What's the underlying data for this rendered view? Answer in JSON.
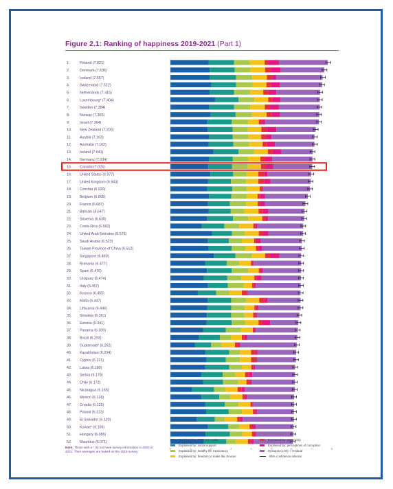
{
  "title": "Figure 2.1: Ranking of happiness 2019-2021",
  "title_part": "(Part 1)",
  "note_label": "Note:",
  "note_text": "Those with a * do not have survey information in 2020 or 2021. Their averages are based on the 2019 survey.",
  "highlight_country": "Canada",
  "colors": {
    "gdp": "#1a5ea6",
    "social": "#1b9a8c",
    "health": "#a7c84a",
    "freedom": "#f4c21a",
    "generosity": "#e03237",
    "corruption": "#e0187f",
    "dystopia": "#9966bb",
    "ci": "#222222",
    "highlight": "#e8231c",
    "title": "#8a2c8e",
    "frame": "#1f5aa8"
  },
  "chart_data": {
    "type": "bar",
    "stacked": true,
    "orientation": "horizontal",
    "xlim": [
      0,
      8
    ],
    "x_ticks": [
      "0",
      "1",
      "2",
      "3",
      "4",
      "5",
      "6",
      "7",
      "8"
    ],
    "categories": [
      "1. Finland (7.821)",
      "2. Denmark (7.636)",
      "3. Iceland (7.557)",
      "4. Switzerland (7.512)",
      "5. Netherlands (7.415)",
      "6. Luxembourg* (7.404)",
      "7. Sweden (7.384)",
      "8. Norway (7.365)",
      "9. Israel (7.364)",
      "10. New Zealand (7.200)",
      "11. Austria (7.163)",
      "12. Australia (7.162)",
      "13. Ireland (7.041)",
      "14. Germany (7.034)",
      "15. Canada (7.025)",
      "16. United States (6.977)",
      "17. United Kingdom (6.943)",
      "18. Czechia (6.920)",
      "19. Belgium (6.805)",
      "20. France (6.687)",
      "21. Bahrain (6.647)",
      "22. Slovenia (6.630)",
      "23. Costa Rica (6.582)",
      "24. United Arab Emirates (6.576)",
      "25. Saudi Arabia (6.523)",
      "26. Taiwan Province of China (6.512)",
      "27. Singapore (6.480)",
      "28. Romania (6.477)",
      "29. Spain (6.476)",
      "30. Uruguay (6.474)",
      "31. Italy (6.467)",
      "32. Kosovo (6.455)",
      "33. Malta (6.447)",
      "34. Lithuania (6.446)",
      "35. Slovakia (6.391)",
      "36. Estonia (6.341)",
      "37. Panama (6.309)",
      "38. Brazil (6.293)",
      "39. Guatemala* (6.262)",
      "40. Kazakhstan (6.234)",
      "41. Cyprus (6.221)",
      "42. Latvia (6.180)",
      "43. Serbia (6.178)",
      "44. Chile (6.172)",
      "45. Nicaragua (6.165)",
      "46. Mexico (6.128)",
      "47. Croatia (6.125)",
      "48. Poland (6.123)",
      "49. El Salvador (6.120)",
      "50. Kuwait* (6.106)",
      "51. Hungary (6.086)",
      "52. Mauritius (6.071)"
    ],
    "scores": [
      7.821,
      7.636,
      7.557,
      7.512,
      7.415,
      7.404,
      7.384,
      7.365,
      7.364,
      7.2,
      7.163,
      7.162,
      7.041,
      7.034,
      7.025,
      6.977,
      6.943,
      6.92,
      6.805,
      6.687,
      6.647,
      6.63,
      6.582,
      6.576,
      6.523,
      6.512,
      6.48,
      6.477,
      6.476,
      6.474,
      6.467,
      6.455,
      6.447,
      6.446,
      6.391,
      6.341,
      6.309,
      6.293,
      6.262,
      6.234,
      6.221,
      6.18,
      6.178,
      6.172,
      6.165,
      6.128,
      6.125,
      6.123,
      6.12,
      6.106,
      6.086,
      6.071
    ],
    "series": [
      {
        "name": "Explained by: GDP per capita",
        "key": "gdp",
        "values": [
          1.89,
          1.95,
          1.94,
          2.03,
          1.95,
          2.21,
          1.92,
          2.0,
          1.83,
          1.85,
          1.93,
          1.9,
          2.13,
          1.92,
          1.88,
          1.98,
          1.87,
          1.82,
          1.91,
          1.86,
          1.89,
          1.83,
          1.56,
          2.06,
          1.86,
          1.9,
          2.15,
          1.72,
          1.81,
          1.65,
          1.86,
          1.36,
          1.84,
          1.82,
          1.81,
          1.8,
          1.63,
          1.42,
          1.21,
          1.74,
          1.79,
          1.73,
          1.53,
          1.63,
          1.07,
          1.53,
          1.72,
          1.77,
          1.32,
          1.86,
          1.74,
          1.65
        ]
      },
      {
        "name": "Explained by: social support",
        "key": "social",
        "values": [
          1.26,
          1.24,
          1.32,
          1.23,
          1.21,
          1.17,
          1.24,
          1.23,
          1.21,
          1.23,
          1.16,
          1.22,
          1.24,
          1.17,
          1.18,
          1.13,
          1.13,
          1.25,
          1.11,
          1.09,
          1.1,
          1.27,
          1.11,
          0.99,
          1.04,
          1.14,
          1.07,
          1.07,
          1.23,
          1.17,
          0.99,
          0.91,
          1.17,
          1.2,
          1.2,
          1.23,
          1.12,
          1.03,
          0.81,
          1.17,
          0.96,
          1.18,
          1.06,
          0.98,
          1.1,
          0.89,
          0.98,
          1.12,
          0.88,
          1.01,
          1.21,
          1.12
        ]
      },
      {
        "name": "Explained by: healthy life expectancy",
        "key": "health",
        "values": [
          0.78,
          0.78,
          0.8,
          0.82,
          0.79,
          0.78,
          0.8,
          0.8,
          0.82,
          0.76,
          0.78,
          0.79,
          0.78,
          0.76,
          0.78,
          0.68,
          0.75,
          0.71,
          0.76,
          0.8,
          0.68,
          0.76,
          0.74,
          0.64,
          0.64,
          0.68,
          0.82,
          0.62,
          0.82,
          0.69,
          0.8,
          0.64,
          0.76,
          0.66,
          0.66,
          0.69,
          0.74,
          0.56,
          0.52,
          0.53,
          0.7,
          0.63,
          0.64,
          0.75,
          0.55,
          0.55,
          0.68,
          0.66,
          0.5,
          0.55,
          0.62,
          0.49
        ]
      },
      {
        "name": "Explained by: freedom to make life choices",
        "key": "freedom",
        "values": [
          0.74,
          0.72,
          0.72,
          0.68,
          0.65,
          0.69,
          0.72,
          0.74,
          0.52,
          0.67,
          0.63,
          0.66,
          0.68,
          0.61,
          0.65,
          0.57,
          0.61,
          0.65,
          0.54,
          0.58,
          0.7,
          0.69,
          0.7,
          0.69,
          0.61,
          0.52,
          0.66,
          0.58,
          0.52,
          0.65,
          0.4,
          0.63,
          0.63,
          0.48,
          0.43,
          0.65,
          0.59,
          0.53,
          0.66,
          0.56,
          0.55,
          0.47,
          0.47,
          0.41,
          0.61,
          0.6,
          0.59,
          0.54,
          0.61,
          0.5,
          0.47,
          0.58
        ]
      },
      {
        "name": "Explained by: generosity",
        "key": "generosity",
        "values": [
          0.18,
          0.25,
          0.27,
          0.22,
          0.24,
          0.22,
          0.24,
          0.24,
          0.16,
          0.26,
          0.23,
          0.22,
          0.24,
          0.22,
          0.24,
          0.28,
          0.28,
          0.11,
          0.13,
          0.1,
          0.22,
          0.15,
          0.1,
          0.2,
          0.1,
          0.12,
          0.24,
          0.11,
          0.08,
          0.1,
          0.08,
          0.26,
          0.27,
          0.09,
          0.14,
          0.19,
          0.09,
          0.13,
          0.17,
          0.2,
          0.24,
          0.1,
          0.19,
          0.16,
          0.2,
          0.13,
          0.11,
          0.12,
          0.16,
          0.13,
          0.13,
          0.17
        ]
      },
      {
        "name": "Explained by: perceptions of corruption",
        "key": "corruption",
        "values": [
          0.53,
          0.53,
          0.19,
          0.46,
          0.41,
          0.39,
          0.47,
          0.43,
          0.14,
          0.48,
          0.28,
          0.39,
          0.41,
          0.36,
          0.36,
          0.17,
          0.32,
          0.04,
          0.23,
          0.26,
          0.26,
          0.14,
          0.1,
          0.27,
          0.23,
          0.19,
          0.46,
          0.03,
          0.13,
          0.26,
          0.1,
          0.03,
          0.13,
          0.11,
          0.05,
          0.38,
          0.05,
          0.14,
          0.09,
          0.12,
          0.05,
          0.09,
          0.17,
          0.1,
          0.16,
          0.09,
          0.02,
          0.09,
          0.11,
          0.17,
          0.07,
          0.11
        ]
      },
      {
        "name": "Dystopia (1.83) + residual",
        "key": "dystopia",
        "values": [
          2.42,
          2.16,
          2.3,
          2.08,
          2.17,
          1.94,
          2.01,
          1.94,
          2.68,
          1.95,
          2.13,
          1.96,
          1.57,
          2.0,
          1.94,
          2.16,
          1.99,
          2.34,
          2.13,
          2.0,
          1.8,
          1.79,
          2.27,
          1.73,
          2.04,
          1.96,
          1.08,
          2.35,
          1.89,
          1.95,
          2.23,
          2.62,
          1.65,
          2.09,
          2.1,
          1.4,
          2.09,
          2.48,
          2.8,
          1.91,
          1.93,
          1.98,
          2.12,
          2.14,
          2.48,
          2.34,
          2.03,
          1.82,
          2.54,
          1.89,
          1.85,
          1.95
        ]
      }
    ],
    "legend": [
      {
        "key": "gdp",
        "label": "Explained by: GDP per capita"
      },
      {
        "key": "social",
        "label": "Explained by: social support"
      },
      {
        "key": "health",
        "label": "Explained by: healthy life expectancy"
      },
      {
        "key": "freedom",
        "label": "Explained by: freedom to make life choices"
      },
      {
        "key": "generosity",
        "label": "Explained by: generosity"
      },
      {
        "key": "corruption",
        "label": "Explained by: perceptions of corruption"
      },
      {
        "key": "dystopia",
        "label": "Dystopia (1.83) + residual"
      },
      {
        "key": "ci",
        "label": "95% confidence interval"
      }
    ],
    "legend_position": "bottom",
    "grid": false
  }
}
